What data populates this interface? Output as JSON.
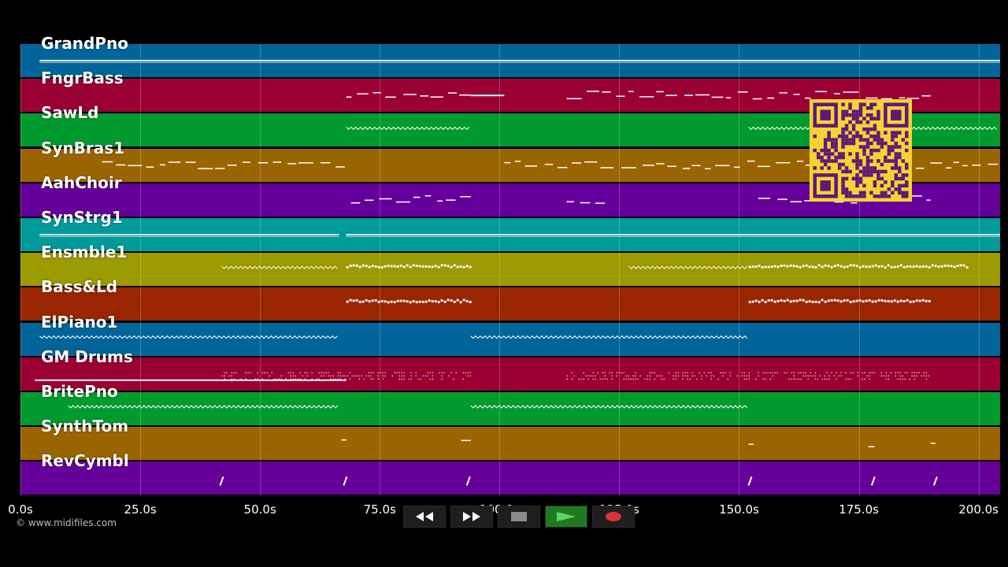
{
  "tracks": [
    {
      "name": "GrandPno",
      "color": "#01659a"
    },
    {
      "name": "FngrBass",
      "color": "#9a0132"
    },
    {
      "name": "SawLd",
      "color": "#019a2f"
    },
    {
      "name": "SynBras1",
      "color": "#9a6501"
    },
    {
      "name": "AahChoir",
      "color": "#65019a"
    },
    {
      "name": "SynStrg1",
      "color": "#019a9a"
    },
    {
      "name": "Ensmble1",
      "color": "#9a9a01"
    },
    {
      "name": "Bass&Ld",
      "color": "#9a2501"
    },
    {
      "name": "ElPiano1",
      "color": "#01659a"
    },
    {
      "name": "GM Drums",
      "color": "#9a0132"
    },
    {
      "name": "BritePno",
      "color": "#019a2f"
    },
    {
      "name": "SynthTom",
      "color": "#9a6501"
    },
    {
      "name": "RevCymbl",
      "color": "#65019a"
    }
  ],
  "timeline": {
    "ticks": [
      "0.0s",
      "25.0s",
      "50.0s",
      "75.0s",
      "100.0s",
      "125.0s",
      "150.0s",
      "175.0s",
      "200.0s"
    ],
    "tick_seconds": [
      0,
      25,
      50,
      75,
      100,
      125,
      150,
      175,
      200
    ],
    "duration_seconds": 204.5
  },
  "transport": {
    "rewind_icon": "rewind-icon",
    "fast_forward_icon": "fast-forward-icon",
    "stop_icon": "stop-icon",
    "play_icon": "play-icon",
    "record_icon": "record-icon",
    "play_color": "#5fd35f",
    "record_color": "#e0303a"
  },
  "copyright": "© www.midifiles.com",
  "qr_colors": {
    "background": "#f7d233",
    "modules": "#5a1a78"
  },
  "note_segments": [
    {
      "track": 0,
      "spans": [
        [
          4,
          204.5
        ]
      ],
      "style": "solid"
    },
    {
      "track": 1,
      "spans": [
        [
          68,
          94
        ],
        [
          114,
          190
        ]
      ],
      "style": "melody"
    },
    {
      "track": 1,
      "spans": [
        [
          94,
          101
        ]
      ],
      "style": "solid"
    },
    {
      "track": 2,
      "spans": [
        [
          68,
          94
        ],
        [
          152,
          204
        ]
      ],
      "style": "trill"
    },
    {
      "track": 3,
      "spans": [
        [
          17,
          68
        ],
        [
          101,
          204
        ]
      ],
      "style": "melody"
    },
    {
      "track": 4,
      "spans": [
        [
          69,
          94
        ],
        [
          114,
          122
        ],
        [
          154,
          190
        ]
      ],
      "style": "melody"
    },
    {
      "track": 5,
      "spans": [
        [
          4,
          66.5
        ],
        [
          68,
          204.5
        ]
      ],
      "style": "solid"
    },
    {
      "track": 6,
      "spans": [
        [
          42,
          66.5
        ],
        [
          127,
          152
        ]
      ],
      "style": "trill"
    },
    {
      "track": 6,
      "spans": [
        [
          68,
          94
        ],
        [
          152,
          197.5
        ]
      ],
      "style": "dense"
    },
    {
      "track": 7,
      "spans": [
        [
          68,
          94
        ],
        [
          152,
          190
        ]
      ],
      "style": "dense"
    },
    {
      "track": 8,
      "spans": [
        [
          4,
          66.5
        ],
        [
          94,
          152
        ]
      ],
      "style": "trill"
    },
    {
      "track": 9,
      "spans": [
        [
          42,
          94
        ],
        [
          114,
          190
        ]
      ],
      "style": "dots"
    },
    {
      "track": 9,
      "spans": [
        [
          3,
          68
        ]
      ],
      "style": "solid"
    },
    {
      "track": 10,
      "spans": [
        [
          10,
          66.5
        ],
        [
          94,
          152
        ]
      ],
      "style": "trill"
    },
    {
      "track": 11,
      "spans": [
        [
          67,
          68
        ],
        [
          92,
          94
        ],
        [
          152,
          153
        ],
        [
          177,
          179
        ],
        [
          190,
          191
        ]
      ],
      "style": "melody"
    },
    {
      "track": 12,
      "points": [
        42,
        67.8,
        93.5,
        152.3,
        178,
        191
      ]
    }
  ]
}
